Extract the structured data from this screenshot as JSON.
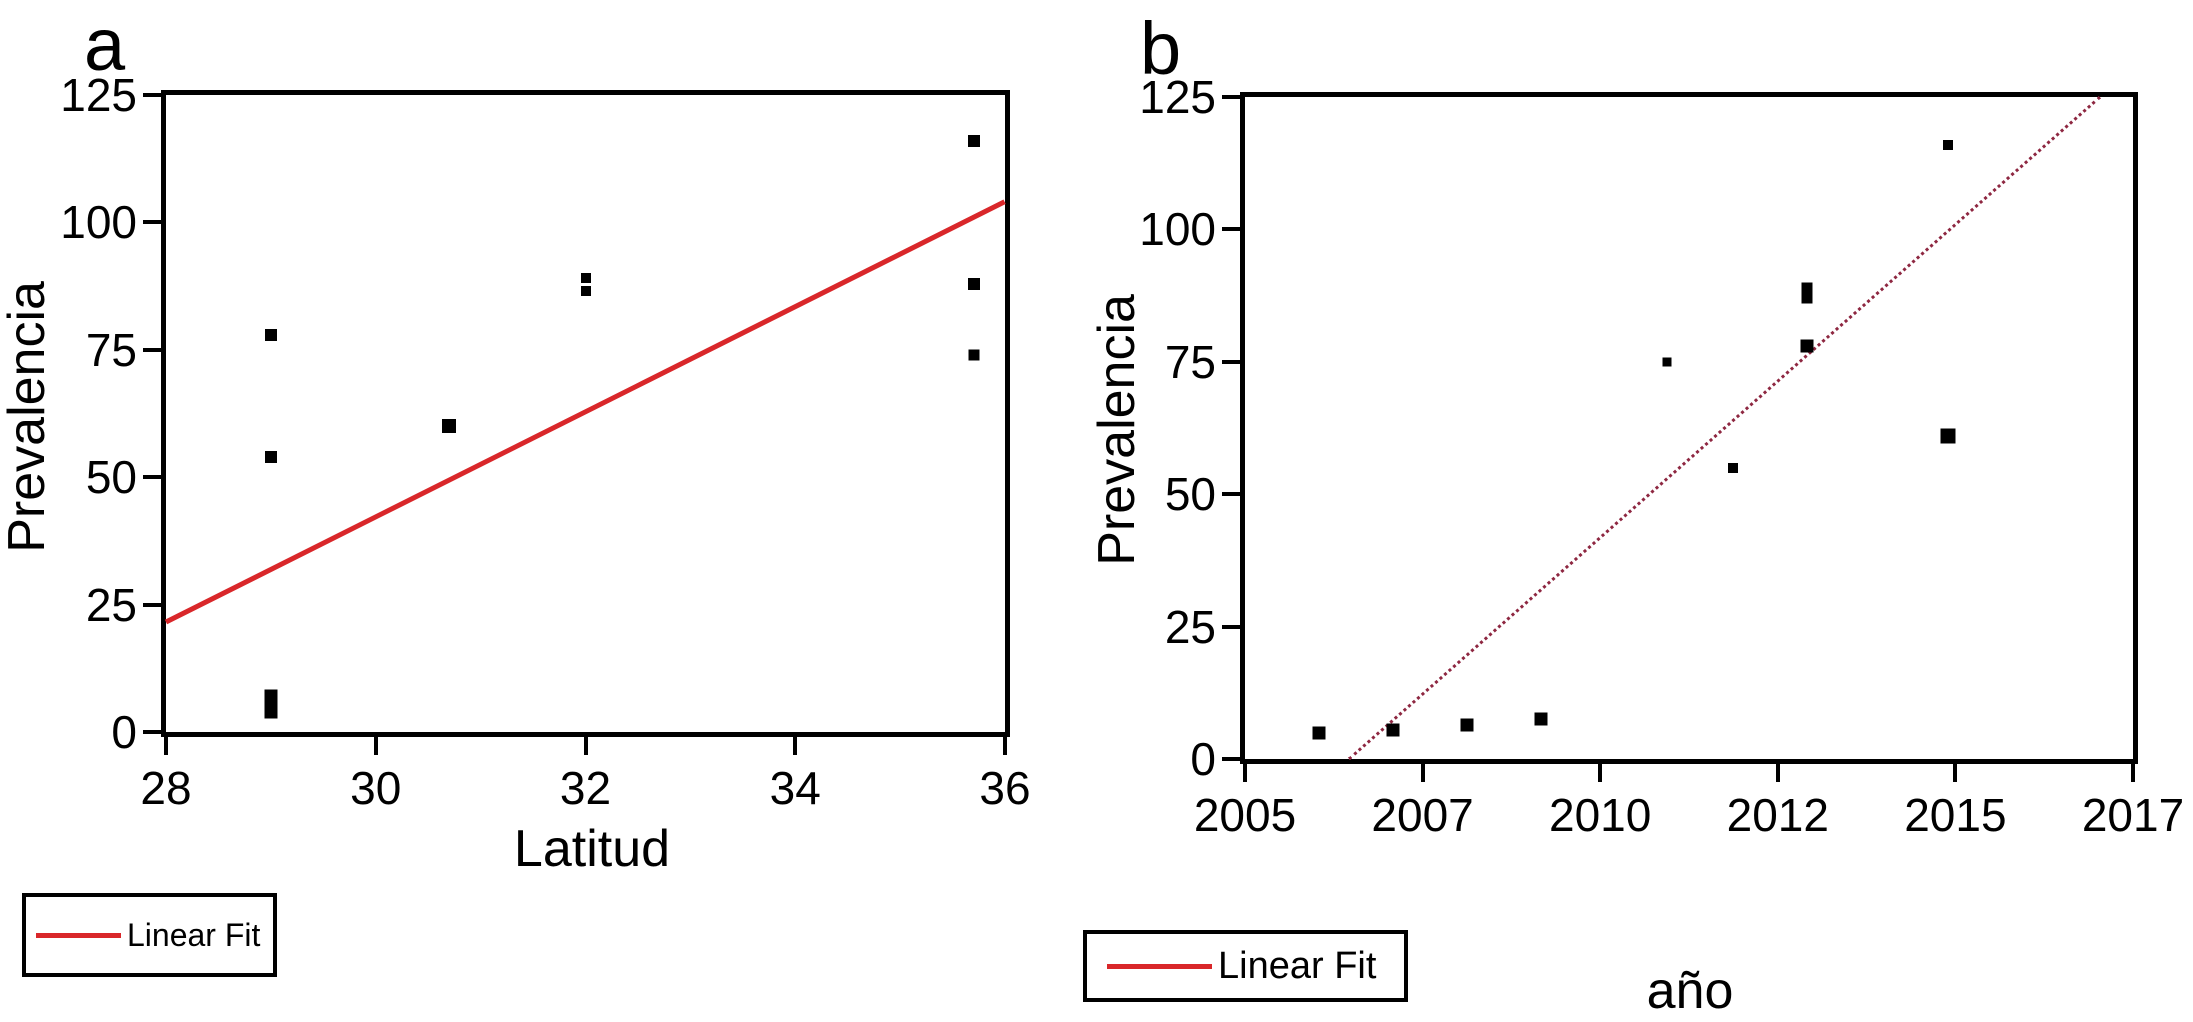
{
  "figure": {
    "background": "#ffffff",
    "marker_color": "#000000",
    "legend_line_color": "#d9272a"
  },
  "chart_data": [
    {
      "type": "scatter",
      "panel_label": "a",
      "xlabel": "Latitud",
      "ylabel": "Prevalencia",
      "xlim": [
        28,
        36
      ],
      "ylim": [
        0,
        125
      ],
      "xticks": [
        {
          "v": 28,
          "label": "28"
        },
        {
          "v": 30,
          "label": "30"
        },
        {
          "v": 32,
          "label": "32"
        },
        {
          "v": 34,
          "label": "34"
        },
        {
          "v": 36,
          "label": "36"
        }
      ],
      "yticks": [
        {
          "v": 0,
          "label": "0"
        },
        {
          "v": 25,
          "label": "25"
        },
        {
          "v": 50,
          "label": "50"
        },
        {
          "v": 75,
          "label": "75"
        },
        {
          "v": 100,
          "label": "100"
        },
        {
          "v": 125,
          "label": "125"
        }
      ],
      "points": [
        [
          29,
          4,
          13
        ],
        [
          29,
          5.5,
          13
        ],
        [
          29,
          7,
          13
        ],
        [
          29,
          54,
          12
        ],
        [
          29,
          78,
          12
        ],
        [
          30.7,
          60,
          14
        ],
        [
          32,
          86.5,
          10
        ],
        [
          32,
          89,
          10
        ],
        [
          35.7,
          74,
          11
        ],
        [
          35.7,
          88,
          12
        ],
        [
          35.7,
          116,
          12
        ]
      ],
      "fit_line": {
        "x1": 28,
        "y1": 21.5,
        "x2": 36,
        "y2": 104,
        "color": "#d9272a",
        "style": "solid",
        "width": 5
      },
      "legend_label": "Linear Fit",
      "legend_color": "#d9272a"
    },
    {
      "type": "scatter",
      "panel_label": "b",
      "xlabel": "año",
      "ylabel": "Prevalencia",
      "xlim": [
        2005,
        2017
      ],
      "ylim": [
        0,
        125
      ],
      "xticks": [
        {
          "v": 2005,
          "label": "2005"
        },
        {
          "v": 2007.4,
          "label": "2007"
        },
        {
          "v": 2009.8,
          "label": "2010"
        },
        {
          "v": 2012.2,
          "label": "2012"
        },
        {
          "v": 2014.6,
          "label": "2015"
        },
        {
          "v": 2017,
          "label": "2017"
        }
      ],
      "yticks": [
        {
          "v": 0,
          "label": "0"
        },
        {
          "v": 25,
          "label": "25"
        },
        {
          "v": 50,
          "label": "50"
        },
        {
          "v": 75,
          "label": "75"
        },
        {
          "v": 100,
          "label": "100"
        },
        {
          "v": 125,
          "label": "125"
        }
      ],
      "points": [
        [
          2006,
          5,
          13
        ],
        [
          2007,
          5.5,
          13
        ],
        [
          2008,
          6.5,
          13
        ],
        [
          2009,
          7.5,
          13
        ],
        [
          2010.7,
          75,
          9
        ],
        [
          2011.6,
          55,
          10
        ],
        [
          2012.6,
          78,
          13
        ],
        [
          2012.6,
          87,
          11
        ],
        [
          2012.6,
          89,
          11
        ],
        [
          2014.5,
          61,
          15
        ],
        [
          2014.5,
          116,
          10
        ]
      ],
      "fit_line": {
        "x1": 2006.4,
        "y1": 0,
        "x2": 2016.55,
        "y2": 125,
        "color": "#8e2741",
        "style": "dotted",
        "width": 3
      },
      "legend_label": "Linear Fit",
      "legend_color": "#d9272a"
    }
  ]
}
